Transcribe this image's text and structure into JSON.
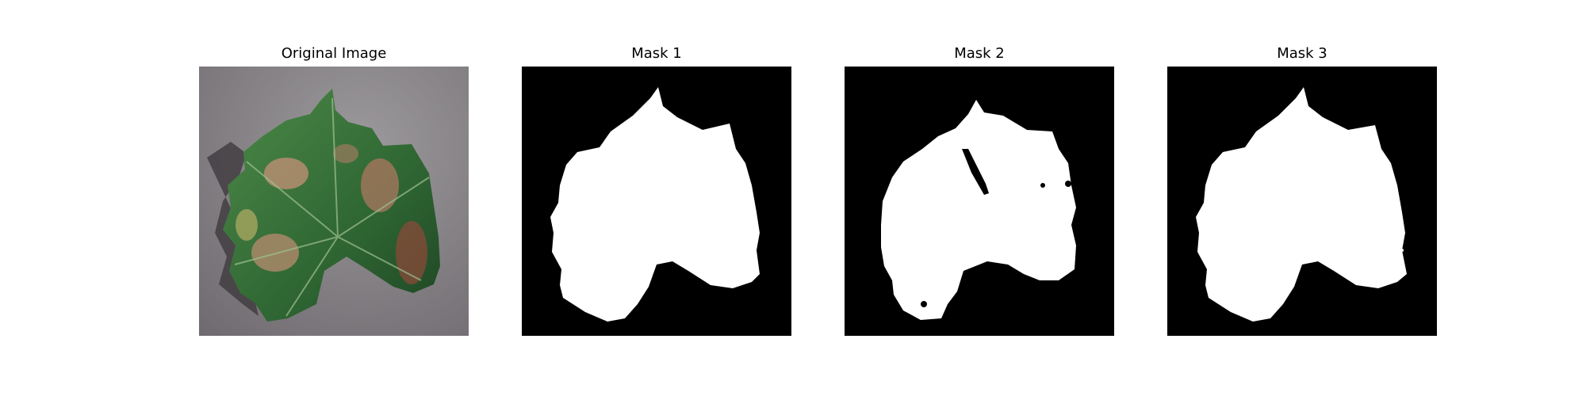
{
  "panels": [
    {
      "title": "Original Image",
      "kind": "photo"
    },
    {
      "title": "Mask 1",
      "kind": "mask"
    },
    {
      "title": "Mask 2",
      "kind": "mask"
    },
    {
      "title": "Mask 3",
      "kind": "mask"
    }
  ],
  "colors": {
    "mask_background": "#000000",
    "mask_foreground": "#ffffff",
    "photo_background": "#8e8b8e",
    "leaf_green": "#3f7a3f",
    "leaf_dark_green": "#244f2a",
    "leaf_lesion": "#b28a6e"
  }
}
